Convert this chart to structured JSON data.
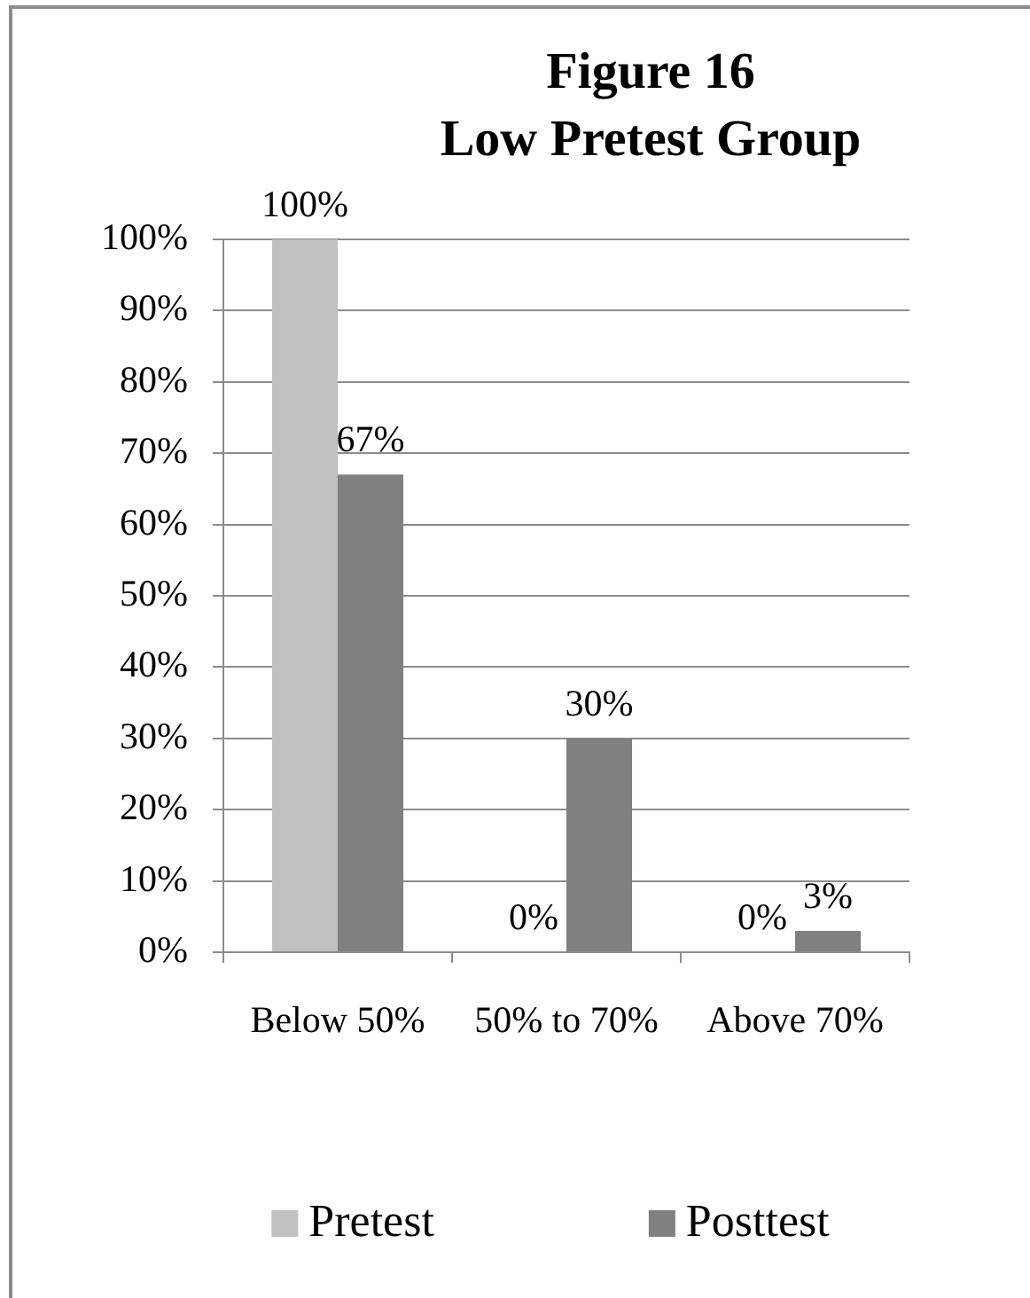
{
  "chart_data": {
    "type": "bar",
    "title": "Figure 16",
    "subtitle": "Low Pretest Group",
    "categories": [
      "Below 50%",
      "50% to 70%",
      "Above 70%"
    ],
    "series": [
      {
        "name": "Pretest",
        "color": "#c0c0c0",
        "values": [
          100,
          0,
          0
        ],
        "value_labels": [
          "100%",
          "0%",
          "0%"
        ]
      },
      {
        "name": "Posttest",
        "color": "#808080",
        "values": [
          67,
          30,
          3
        ],
        "value_labels": [
          "67%",
          "30%",
          "3%"
        ]
      }
    ],
    "ylim": [
      0,
      100
    ],
    "yticks": [
      {
        "value": 0,
        "label": "0%"
      },
      {
        "value": 10,
        "label": "10%"
      },
      {
        "value": 20,
        "label": "20%"
      },
      {
        "value": 30,
        "label": "30%"
      },
      {
        "value": 40,
        "label": "40%"
      },
      {
        "value": 50,
        "label": "50%"
      },
      {
        "value": 60,
        "label": "60%"
      },
      {
        "value": 70,
        "label": "70%"
      },
      {
        "value": 80,
        "label": "80%"
      },
      {
        "value": 90,
        "label": "90%"
      },
      {
        "value": 100,
        "label": "100%"
      }
    ],
    "grid": "y",
    "legend": "bottom"
  }
}
